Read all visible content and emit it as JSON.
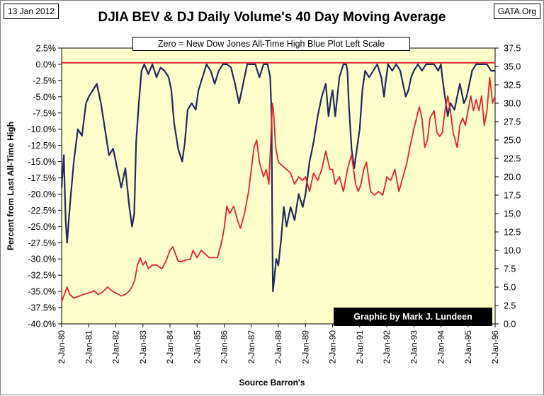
{
  "header": {
    "date": "13 Jan 2012",
    "title": "DJIA BEV & DJ Daily Volume's 40 Day Moving Average",
    "source_tag": "GATA.Org",
    "subtitle": "Zero = New Dow Jones  All-Time High Blue Plot Left Scale",
    "credit": "Graphic by Mark J. Lundeen"
  },
  "chart_data": {
    "type": "line",
    "title": "DJIA BEV & DJ Daily Volume's 40 Day Moving Average",
    "xlabel": "Source Barron's",
    "ylabel": "Percent  from Last All-Time High",
    "x_ticks": [
      "2-Jan-80",
      "2-Jan-81",
      "2-Jan-82",
      "2-Jan-83",
      "2-Jan-84",
      "2-Jan-85",
      "2-Jan-86",
      "2-Jan-87",
      "2-Jan-88",
      "2-Jan-89",
      "2-Jan-90",
      "2-Jan-91",
      "2-Jan-92",
      "2-Jan-93",
      "2-Jan-94",
      "2-Jan-95",
      "2-Jan-96"
    ],
    "y_left": {
      "range": [
        -40,
        2.5
      ],
      "ticks": [
        "2.5%",
        "0.0%",
        "-2.5%",
        "-5.0%",
        "-7.5%",
        "-10.0%",
        "-12.5%",
        "-15.0%",
        "-17.5%",
        "-20.0%",
        "-22.5%",
        "-25.0%",
        "-27.5%",
        "-30.0%",
        "-32.5%",
        "-35.0%",
        "-37.5%",
        "-40.0%"
      ]
    },
    "y_right": {
      "range": [
        0,
        37.5
      ],
      "ticks": [
        "37.5",
        "35.0",
        "32.5",
        "30.0",
        "27.5",
        "25.0",
        "22.5",
        "20.0",
        "17.5",
        "15.0",
        "12.5",
        "10.0",
        "7.5",
        "5.0",
        "2.5",
        "0.0"
      ]
    },
    "reference_line": {
      "axis": "right",
      "value": 35.5,
      "color": "#e8202a"
    },
    "grid": false,
    "plot_background": "#ffffcc",
    "series": [
      {
        "color": "#1f2a5e",
        "axis": "left",
        "points": [
          [
            1980.0,
            -19
          ],
          [
            1980.08,
            -14
          ],
          [
            1980.15,
            -24
          ],
          [
            1980.2,
            -27.5
          ],
          [
            1980.3,
            -22
          ],
          [
            1980.45,
            -15
          ],
          [
            1980.6,
            -10
          ],
          [
            1980.75,
            -11
          ],
          [
            1980.9,
            -6
          ],
          [
            1981.0,
            -5
          ],
          [
            1981.15,
            -4
          ],
          [
            1981.3,
            -3
          ],
          [
            1981.45,
            -6
          ],
          [
            1981.6,
            -10
          ],
          [
            1981.75,
            -14
          ],
          [
            1981.9,
            -13
          ],
          [
            1982.0,
            -15
          ],
          [
            1982.1,
            -17
          ],
          [
            1982.2,
            -19
          ],
          [
            1982.35,
            -16
          ],
          [
            1982.5,
            -22
          ],
          [
            1982.6,
            -25
          ],
          [
            1982.68,
            -23
          ],
          [
            1982.75,
            -12
          ],
          [
            1982.85,
            -6
          ],
          [
            1982.95,
            -1
          ],
          [
            1983.05,
            0
          ],
          [
            1983.2,
            -1.5
          ],
          [
            1983.35,
            0
          ],
          [
            1983.5,
            -2
          ],
          [
            1983.65,
            -0.5
          ],
          [
            1983.8,
            -1
          ],
          [
            1983.95,
            -2
          ],
          [
            1984.05,
            -4
          ],
          [
            1984.15,
            -9
          ],
          [
            1984.3,
            -13
          ],
          [
            1984.45,
            -15
          ],
          [
            1984.55,
            -12
          ],
          [
            1984.65,
            -7
          ],
          [
            1984.8,
            -6
          ],
          [
            1984.95,
            -7
          ],
          [
            1985.05,
            -4
          ],
          [
            1985.2,
            -2
          ],
          [
            1985.35,
            0
          ],
          [
            1985.5,
            -1
          ],
          [
            1985.65,
            -3
          ],
          [
            1985.8,
            -1
          ],
          [
            1985.95,
            0
          ],
          [
            1986.1,
            0
          ],
          [
            1986.25,
            -0.5
          ],
          [
            1986.4,
            -3
          ],
          [
            1986.55,
            -6
          ],
          [
            1986.7,
            -3
          ],
          [
            1986.85,
            0
          ],
          [
            1987.0,
            0
          ],
          [
            1987.15,
            0
          ],
          [
            1987.3,
            -2
          ],
          [
            1987.45,
            0
          ],
          [
            1987.6,
            0
          ],
          [
            1987.7,
            -2
          ],
          [
            1987.75,
            -8
          ],
          [
            1987.78,
            -28
          ],
          [
            1987.8,
            -35
          ],
          [
            1987.85,
            -33
          ],
          [
            1987.92,
            -30
          ],
          [
            1988.0,
            -31
          ],
          [
            1988.1,
            -27
          ],
          [
            1988.2,
            -22
          ],
          [
            1988.3,
            -25
          ],
          [
            1988.45,
            -22
          ],
          [
            1988.6,
            -24
          ],
          [
            1988.75,
            -20
          ],
          [
            1988.9,
            -22
          ],
          [
            1989.0,
            -20
          ],
          [
            1989.15,
            -15
          ],
          [
            1989.3,
            -12
          ],
          [
            1989.45,
            -8
          ],
          [
            1989.6,
            -5
          ],
          [
            1989.75,
            -3
          ],
          [
            1989.85,
            -8
          ],
          [
            1989.95,
            -5
          ],
          [
            1990.0,
            -4
          ],
          [
            1990.1,
            -8
          ],
          [
            1990.25,
            -2
          ],
          [
            1990.4,
            0
          ],
          [
            1990.5,
            0
          ],
          [
            1990.55,
            -1
          ],
          [
            1990.6,
            -6
          ],
          [
            1990.7,
            -13
          ],
          [
            1990.8,
            -16
          ],
          [
            1990.9,
            -13
          ],
          [
            1991.0,
            -10
          ],
          [
            1991.1,
            -4
          ],
          [
            1991.2,
            -1
          ],
          [
            1991.35,
            -2
          ],
          [
            1991.5,
            -1
          ],
          [
            1991.65,
            0
          ],
          [
            1991.8,
            -2
          ],
          [
            1991.9,
            -5
          ],
          [
            1991.95,
            -3
          ],
          [
            1992.05,
            0
          ],
          [
            1992.2,
            -1
          ],
          [
            1992.35,
            0
          ],
          [
            1992.5,
            -1
          ],
          [
            1992.6,
            -3
          ],
          [
            1992.7,
            -5
          ],
          [
            1992.8,
            -4
          ],
          [
            1992.9,
            -2
          ],
          [
            1993.0,
            -1
          ],
          [
            1993.15,
            0
          ],
          [
            1993.3,
            -1
          ],
          [
            1993.45,
            0
          ],
          [
            1993.6,
            0
          ],
          [
            1993.75,
            0
          ],
          [
            1993.9,
            -1
          ],
          [
            1994.0,
            0
          ],
          [
            1994.05,
            -2
          ],
          [
            1994.15,
            -5
          ],
          [
            1994.25,
            -8
          ],
          [
            1994.35,
            -6
          ],
          [
            1994.5,
            -7
          ],
          [
            1994.6,
            -5
          ],
          [
            1994.7,
            -3
          ],
          [
            1994.85,
            -6
          ],
          [
            1994.95,
            -5
          ],
          [
            1995.05,
            -3
          ],
          [
            1995.15,
            -1
          ],
          [
            1995.3,
            0
          ],
          [
            1995.5,
            0
          ],
          [
            1995.7,
            0
          ],
          [
            1995.85,
            -1
          ],
          [
            1996.0,
            -1
          ]
        ]
      },
      {
        "color": "#e8202a",
        "axis": "right",
        "points": [
          [
            1980.0,
            3
          ],
          [
            1980.1,
            4
          ],
          [
            1980.2,
            5
          ],
          [
            1980.3,
            4
          ],
          [
            1980.45,
            3.5
          ],
          [
            1980.6,
            3.7
          ],
          [
            1980.8,
            4
          ],
          [
            1981.0,
            4.2
          ],
          [
            1981.2,
            4.5
          ],
          [
            1981.35,
            4
          ],
          [
            1981.5,
            4.3
          ],
          [
            1981.7,
            5
          ],
          [
            1981.85,
            4.5
          ],
          [
            1982.0,
            4.2
          ],
          [
            1982.2,
            3.8
          ],
          [
            1982.35,
            4
          ],
          [
            1982.5,
            4.5
          ],
          [
            1982.6,
            5
          ],
          [
            1982.7,
            6
          ],
          [
            1982.8,
            8
          ],
          [
            1982.9,
            9
          ],
          [
            1983.0,
            8
          ],
          [
            1983.1,
            8.5
          ],
          [
            1983.2,
            7.5
          ],
          [
            1983.35,
            8
          ],
          [
            1983.5,
            8
          ],
          [
            1983.7,
            7.5
          ],
          [
            1983.85,
            8.5
          ],
          [
            1984.0,
            10
          ],
          [
            1984.1,
            10.5
          ],
          [
            1984.2,
            9.5
          ],
          [
            1984.3,
            8.5
          ],
          [
            1984.45,
            8.5
          ],
          [
            1984.6,
            8.7
          ],
          [
            1984.75,
            8.8
          ],
          [
            1984.85,
            10
          ],
          [
            1985.0,
            9
          ],
          [
            1985.15,
            10
          ],
          [
            1985.3,
            9.5
          ],
          [
            1985.45,
            9
          ],
          [
            1985.6,
            9
          ],
          [
            1985.75,
            9
          ],
          [
            1985.9,
            11
          ],
          [
            1986.0,
            13
          ],
          [
            1986.1,
            16
          ],
          [
            1986.2,
            15
          ],
          [
            1986.35,
            16
          ],
          [
            1986.5,
            14
          ],
          [
            1986.6,
            13
          ],
          [
            1986.75,
            15
          ],
          [
            1986.9,
            18
          ],
          [
            1987.0,
            21
          ],
          [
            1987.1,
            24
          ],
          [
            1987.2,
            25
          ],
          [
            1987.3,
            22
          ],
          [
            1987.45,
            20
          ],
          [
            1987.55,
            21
          ],
          [
            1987.65,
            19
          ],
          [
            1987.78,
            30
          ],
          [
            1987.82,
            29
          ],
          [
            1987.9,
            24
          ],
          [
            1988.0,
            22
          ],
          [
            1988.15,
            21.5
          ],
          [
            1988.3,
            21
          ],
          [
            1988.45,
            20.5
          ],
          [
            1988.6,
            19
          ],
          [
            1988.75,
            20
          ],
          [
            1988.9,
            19.5
          ],
          [
            1989.0,
            20
          ],
          [
            1989.15,
            18
          ],
          [
            1989.3,
            20.5
          ],
          [
            1989.45,
            19.5
          ],
          [
            1989.6,
            21
          ],
          [
            1989.75,
            23.5
          ],
          [
            1989.9,
            21
          ],
          [
            1990.0,
            21
          ],
          [
            1990.1,
            19
          ],
          [
            1990.25,
            20
          ],
          [
            1990.4,
            18
          ],
          [
            1990.55,
            21
          ],
          [
            1990.7,
            23
          ],
          [
            1990.85,
            19
          ],
          [
            1990.95,
            18
          ],
          [
            1991.05,
            19
          ],
          [
            1991.15,
            21
          ],
          [
            1991.25,
            22
          ],
          [
            1991.4,
            18
          ],
          [
            1991.55,
            17.5
          ],
          [
            1991.7,
            18
          ],
          [
            1991.85,
            17.5
          ],
          [
            1991.95,
            19
          ],
          [
            1992.0,
            20
          ],
          [
            1992.15,
            19.5
          ],
          [
            1992.3,
            21
          ],
          [
            1992.45,
            18
          ],
          [
            1992.6,
            20
          ],
          [
            1992.75,
            22
          ],
          [
            1992.85,
            24
          ],
          [
            1993.0,
            26.5
          ],
          [
            1993.1,
            28
          ],
          [
            1993.2,
            29.5
          ],
          [
            1993.3,
            28
          ],
          [
            1993.4,
            24
          ],
          [
            1993.5,
            25
          ],
          [
            1993.6,
            28
          ],
          [
            1993.75,
            29
          ],
          [
            1993.85,
            26
          ],
          [
            1993.95,
            25.5
          ],
          [
            1994.05,
            26
          ],
          [
            1994.15,
            29
          ],
          [
            1994.25,
            31
          ],
          [
            1994.35,
            29
          ],
          [
            1994.45,
            26
          ],
          [
            1994.6,
            24
          ],
          [
            1994.7,
            27
          ],
          [
            1994.8,
            28
          ],
          [
            1994.9,
            27
          ],
          [
            1995.0,
            29
          ],
          [
            1995.1,
            31
          ],
          [
            1995.2,
            29
          ],
          [
            1995.3,
            30.5
          ],
          [
            1995.4,
            29
          ],
          [
            1995.5,
            31
          ],
          [
            1995.6,
            27
          ],
          [
            1995.7,
            29
          ],
          [
            1995.8,
            33.5
          ],
          [
            1995.85,
            32
          ],
          [
            1995.9,
            30
          ],
          [
            1996.0,
            31
          ]
        ]
      }
    ]
  }
}
